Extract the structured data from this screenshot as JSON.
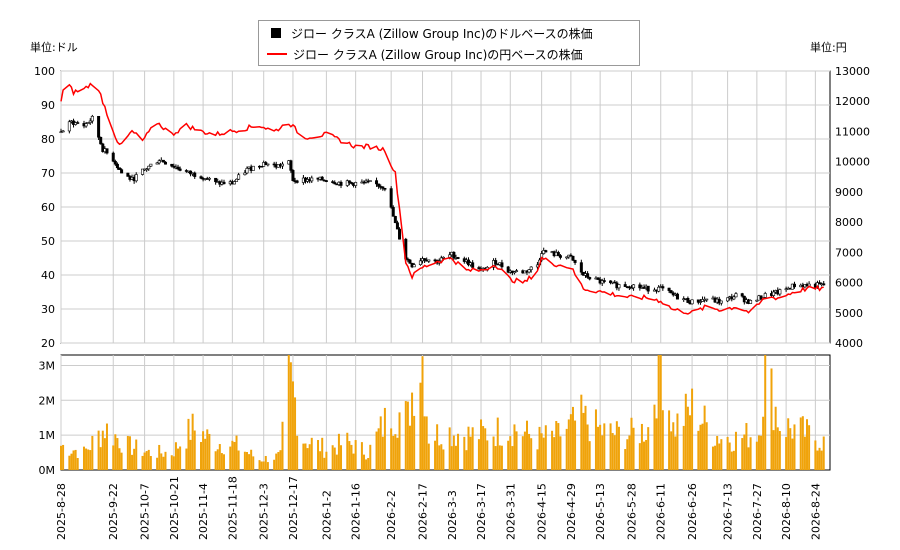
{
  "units": {
    "left": "単位:ドル",
    "right": "単位:円"
  },
  "legend": [
    {
      "label": "ジロー クラスA (Zillow Group Inc)のドルベースの株価",
      "color": "#000000"
    },
    {
      "label": "ジロー クラスA (Zillow Group Inc)の円ベースの株価",
      "color": "#ff0000"
    }
  ],
  "colors": {
    "grid": "#cccccc",
    "candle": "#000000",
    "yen_line": "#ff0000",
    "volume": "#f0a30a"
  },
  "chart_data": [
    {
      "type": "line",
      "title": "",
      "series": [
        {
          "name": "ジロー クラスA (Zillow Group Inc)のドルベースの株価",
          "axis": "left",
          "x": [
            "2025-08-28",
            "2025-09-02",
            "2025-09-08",
            "2025-09-12",
            "2025-09-17",
            "2025-09-22",
            "2025-09-26",
            "2025-10-01",
            "2025-10-07",
            "2025-10-14",
            "2025-10-21",
            "2025-10-28",
            "2025-11-04",
            "2025-11-10",
            "2025-11-18",
            "2025-11-25",
            "2025-12-03",
            "2025-12-09",
            "2025-12-15",
            "2025-12-17",
            "2025-12-22",
            "2026-01-02",
            "2026-01-09",
            "2026-01-16",
            "2026-01-23",
            "2026-01-30",
            "2026-02-04",
            "2026-02-09",
            "2026-02-12",
            "2026-02-17",
            "2026-02-24",
            "2026-03-03",
            "2026-03-10",
            "2026-03-17",
            "2026-03-24",
            "2026-03-31",
            "2026-04-07",
            "2026-04-13",
            "2026-04-15",
            "2026-04-22",
            "2026-04-29",
            "2026-05-05",
            "2026-05-13",
            "2026-05-20",
            "2026-05-28",
            "2026-06-04",
            "2026-06-11",
            "2026-06-17",
            "2026-06-26",
            "2026-07-03",
            "2026-07-10",
            "2026-07-17",
            "2026-07-24",
            "2026-07-31",
            "2026-08-07",
            "2026-08-14",
            "2026-08-20",
            "2026-08-26",
            "2026-08-28"
          ],
          "values": [
            82,
            85,
            84,
            86,
            77,
            74,
            70,
            68,
            71,
            74,
            72,
            70,
            69,
            67,
            67,
            71,
            73,
            72,
            73,
            68,
            68,
            68,
            67,
            67,
            67,
            66,
            55,
            45,
            43,
            45,
            44,
            46,
            44,
            41,
            44,
            41,
            41,
            43,
            47,
            46,
            45,
            40,
            38,
            37,
            37,
            36,
            36,
            34,
            32,
            33,
            32,
            34,
            32,
            34,
            35,
            37,
            37,
            37,
            37
          ]
        },
        {
          "name": "ジロー クラスA (Zillow Group Inc)の円ベースの株価",
          "axis": "right",
          "x": [
            "2025-08-28",
            "2025-08-30",
            "2025-09-03",
            "2025-09-08",
            "2025-09-12",
            "2025-09-16",
            "2025-09-20",
            "2025-09-25",
            "2025-10-01",
            "2025-10-06",
            "2025-10-13",
            "2025-10-20",
            "2025-10-27",
            "2025-11-03",
            "2025-11-10",
            "2025-11-17",
            "2025-11-24",
            "2025-12-01",
            "2025-12-08",
            "2025-12-15",
            "2025-12-22",
            "2026-01-02",
            "2026-01-09",
            "2026-01-16",
            "2026-01-23",
            "2026-01-30",
            "2026-02-04",
            "2026-02-09",
            "2026-02-12",
            "2026-02-17",
            "2026-02-24",
            "2026-03-03",
            "2026-03-10",
            "2026-03-17",
            "2026-03-24",
            "2026-03-31",
            "2026-04-07",
            "2026-04-13",
            "2026-04-15",
            "2026-04-22",
            "2026-04-29",
            "2026-05-05",
            "2026-05-13",
            "2026-05-20",
            "2026-05-28",
            "2026-06-04",
            "2026-06-11",
            "2026-06-17",
            "2026-06-26",
            "2026-07-03",
            "2026-07-10",
            "2026-07-17",
            "2026-07-24",
            "2026-07-31",
            "2026-08-07",
            "2026-08-14",
            "2026-08-20",
            "2026-08-26",
            "2026-08-28"
          ],
          "values": [
            12000,
            12700,
            12300,
            12400,
            12600,
            12200,
            11400,
            10500,
            11000,
            10700,
            11300,
            10900,
            11200,
            11000,
            10900,
            11000,
            11100,
            11200,
            11000,
            11300,
            10800,
            10900,
            10700,
            10500,
            10500,
            10400,
            9600,
            6700,
            6200,
            6500,
            6700,
            6800,
            6400,
            6400,
            6600,
            6100,
            6000,
            6400,
            6800,
            6600,
            6500,
            5800,
            5700,
            5600,
            5500,
            5500,
            5400,
            5100,
            5000,
            5200,
            5100,
            5200,
            5000,
            5500,
            5500,
            5700,
            5800,
            5800,
            5800
          ]
        }
      ],
      "xlabel": "",
      "ylabel": "",
      "ylim": [
        20,
        100
      ],
      "ylim_right": [
        4000,
        13000
      ],
      "yticks": [
        20,
        30,
        40,
        50,
        60,
        70,
        80,
        90,
        100
      ],
      "yticks_right": [
        4000,
        5000,
        6000,
        7000,
        8000,
        9000,
        10000,
        11000,
        12000,
        13000
      ],
      "grid": true
    },
    {
      "type": "bar",
      "title": "",
      "series": [
        {
          "x": [
            "2025-08-28",
            "2025-09-08",
            "2025-09-18",
            "2025-09-29",
            "2025-10-09",
            "2025-10-20",
            "2025-10-30",
            "2025-11-10",
            "2025-11-20",
            "2025-12-01",
            "2025-12-11",
            "2025-12-15",
            "2025-12-22",
            "2026-01-02",
            "2026-01-12",
            "2026-01-22",
            "2026-02-02",
            "2026-02-10",
            "2026-02-13",
            "2026-02-17",
            "2026-02-20",
            "2026-03-02",
            "2026-03-12",
            "2026-03-23",
            "2026-04-02",
            "2026-04-13",
            "2026-04-23",
            "2026-05-04",
            "2026-05-14",
            "2026-05-26",
            "2026-06-05",
            "2026-06-11",
            "2026-06-17",
            "2026-06-26",
            "2026-07-07",
            "2026-07-17",
            "2026-07-28",
            "2026-07-31",
            "2026-08-07",
            "2026-08-18",
            "2026-08-28"
          ],
          "values": [
            700000,
            500000,
            1200000,
            700000,
            500000,
            500000,
            1200000,
            800000,
            700000,
            300000,
            400000,
            2800000,
            900000,
            600000,
            800000,
            500000,
            1700000,
            1500000,
            2600000,
            3300000,
            1000000,
            1100000,
            1000000,
            1100000,
            1200000,
            900000,
            1000000,
            1500000,
            1100000,
            1000000,
            1200000,
            3300000,
            1200000,
            1800000,
            1000000,
            900000,
            1100000,
            2900000,
            1300000,
            1100000,
            800000
          ]
        }
      ],
      "yticks": [
        "0M",
        "1M",
        "2M",
        "3M"
      ],
      "ylim": [
        0,
        3300000
      ],
      "xticks": [
        "2025-8-28",
        "2025-9-22",
        "2025-10-7",
        "2025-10-21",
        "2025-11-4",
        "2025-11-18",
        "2025-12-3",
        "2025-12-17",
        "2026-1-2",
        "2026-1-16",
        "2026-2-2",
        "2026-2-17",
        "2026-3-3",
        "2026-3-17",
        "2026-3-31",
        "2026-4-15",
        "2026-4-29",
        "2026-5-13",
        "2026-5-28",
        "2026-6-11",
        "2026-6-26",
        "2026-7-13",
        "2026-7-27",
        "2026-8-10",
        "2026-8-24"
      ]
    }
  ]
}
